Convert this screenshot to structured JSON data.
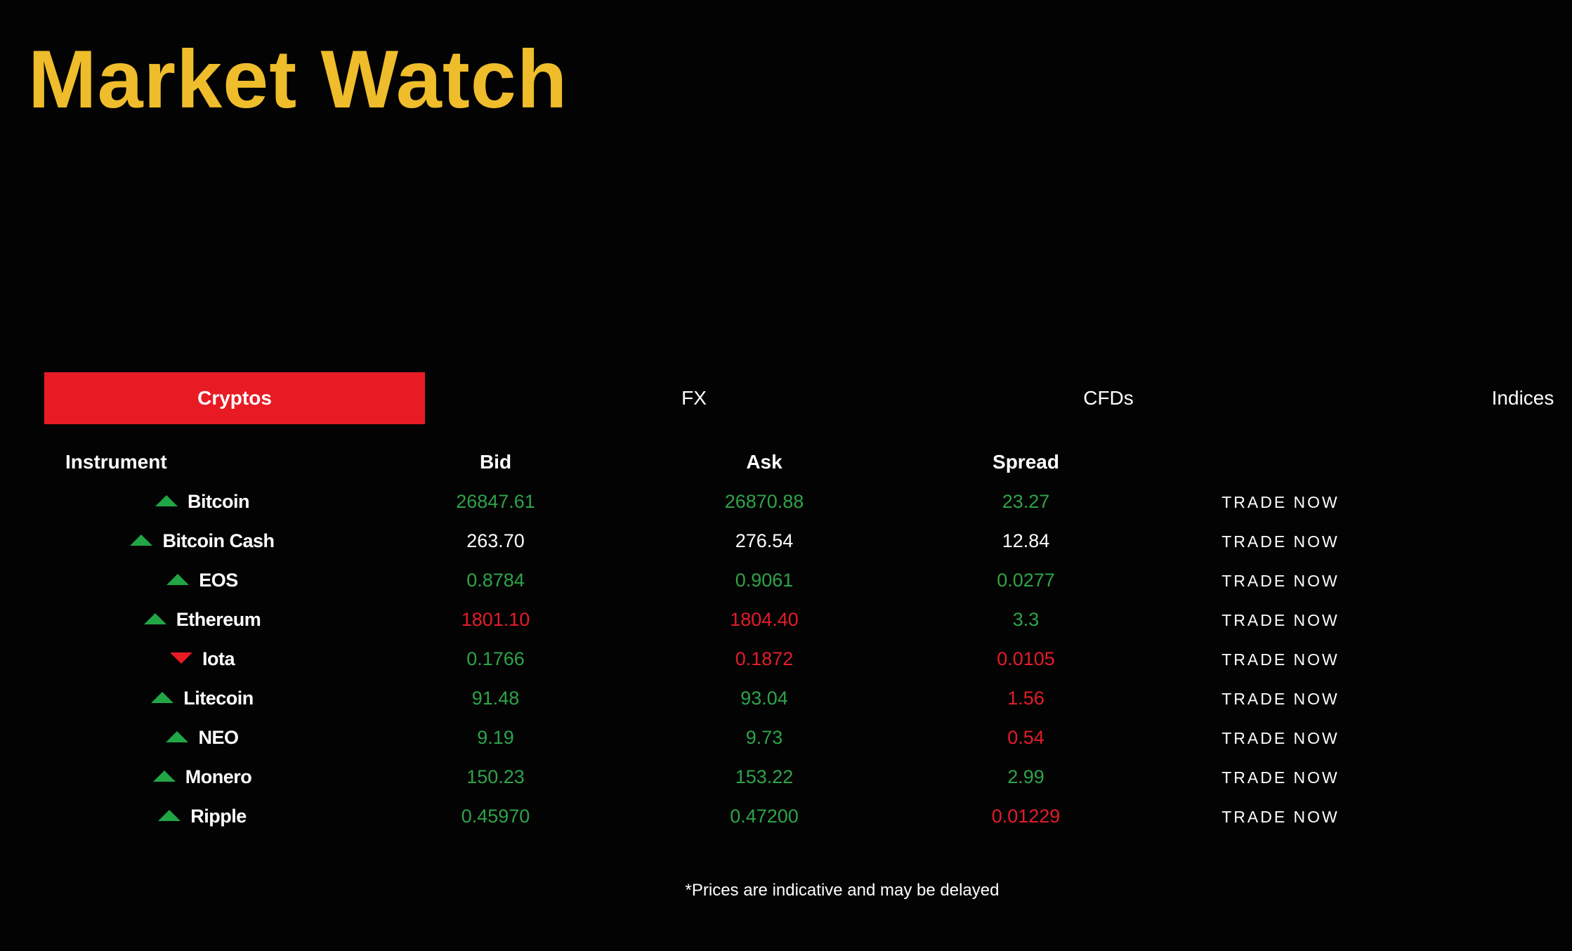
{
  "header": {
    "title": "Market Watch"
  },
  "colors": {
    "title": "#efbd2b",
    "active_tab": "#e81b24",
    "up": "#2ea349",
    "down": "#e41c2a"
  },
  "tabs": [
    {
      "label": "Cryptos",
      "active": true
    },
    {
      "label": "FX",
      "active": false
    },
    {
      "label": "CFDs",
      "active": false
    },
    {
      "label": "Indices",
      "active": false
    }
  ],
  "table": {
    "headers": {
      "instrument": "Instrument",
      "bid": "Bid",
      "ask": "Ask",
      "spread": "Spread"
    },
    "rows": [
      {
        "instrument": "Bitcoin",
        "trend": "up",
        "bid": "26847.61",
        "bid_color": "green",
        "ask": "26870.88",
        "ask_color": "green",
        "spread": "23.27",
        "spread_color": "green",
        "action": "TRADE NOW"
      },
      {
        "instrument": "Bitcoin Cash",
        "trend": "up",
        "bid": "263.70",
        "bid_color": "white",
        "ask": "276.54",
        "ask_color": "white",
        "spread": "12.84",
        "spread_color": "white",
        "action": "TRADE NOW"
      },
      {
        "instrument": "EOS",
        "trend": "up",
        "bid": "0.8784",
        "bid_color": "green",
        "ask": "0.9061",
        "ask_color": "green",
        "spread": "0.0277",
        "spread_color": "green",
        "action": "TRADE NOW"
      },
      {
        "instrument": "Ethereum",
        "trend": "up",
        "bid": "1801.10",
        "bid_color": "red",
        "ask": "1804.40",
        "ask_color": "red",
        "spread": "3.3",
        "spread_color": "green",
        "action": "TRADE NOW"
      },
      {
        "instrument": "Iota",
        "trend": "down",
        "bid": "0.1766",
        "bid_color": "green",
        "ask": "0.1872",
        "ask_color": "red",
        "spread": "0.0105",
        "spread_color": "red",
        "action": "TRADE NOW"
      },
      {
        "instrument": "Litecoin",
        "trend": "up",
        "bid": "91.48",
        "bid_color": "green",
        "ask": "93.04",
        "ask_color": "green",
        "spread": "1.56",
        "spread_color": "red",
        "action": "TRADE NOW"
      },
      {
        "instrument": "NEO",
        "trend": "up",
        "bid": "9.19",
        "bid_color": "green",
        "ask": "9.73",
        "ask_color": "green",
        "spread": "0.54",
        "spread_color": "red",
        "action": "TRADE NOW"
      },
      {
        "instrument": "Monero",
        "trend": "up",
        "bid": "150.23",
        "bid_color": "green",
        "ask": "153.22",
        "ask_color": "green",
        "spread": "2.99",
        "spread_color": "green",
        "action": "TRADE NOW"
      },
      {
        "instrument": "Ripple",
        "trend": "up",
        "bid": "0.45970",
        "bid_color": "green",
        "ask": "0.47200",
        "ask_color": "green",
        "spread": "0.01229",
        "spread_color": "red",
        "action": "TRADE NOW"
      }
    ]
  },
  "footer": {
    "disclaimer": "*Prices are indicative and may be delayed"
  }
}
